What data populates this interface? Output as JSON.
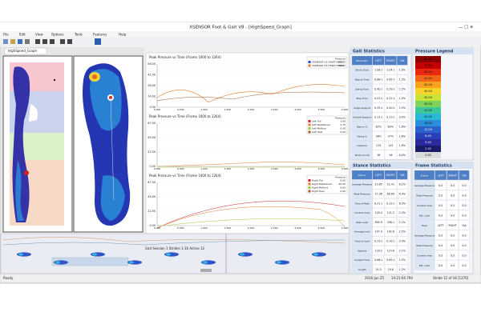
{
  "window": {
    "title": "XSENSOR Foot & Gait V8 - [HighSpeed_Graph]"
  },
  "menu": [
    "File",
    "Edit",
    "View",
    "Options",
    "Tools",
    "Features",
    "Help"
  ],
  "tab": "HighSpeed_Graph",
  "graphs": [
    {
      "title": "Peak Pressure vs Time (Frame 1000 to 1264)",
      "legend_header": "Pressure",
      "legend": [
        {
          "name": "XSENSOR X3 HSWP 58405",
          "value": "52.25",
          "color": "#1f4fbf"
        },
        {
          "name": "XSENSOR X3 HSWP 58406",
          "value": "38.05",
          "color": "#e07b2a"
        }
      ],
      "yticks": [
        "56.00",
        "42.00",
        "28.00",
        "14.00",
        "0.00"
      ]
    },
    {
      "title": "Peak Pressure vs Time (Frame 1000 to 1264)",
      "legend_header": "Pressure",
      "legend": [
        {
          "name": "Left Toe",
          "value": "3.00",
          "color": "#d0202a"
        },
        {
          "name": "Left Metatarsal",
          "value": "4.75",
          "color": "#e07b2a"
        },
        {
          "name": "Left Midfoot",
          "value": "0.00",
          "color": "#9bc93a"
        },
        {
          "name": "Left Heel",
          "value": "0.00",
          "color": "#a05a2c"
        }
      ],
      "yticks": [
        "67.50",
        "45.00",
        "22.50",
        "0.00"
      ]
    },
    {
      "title": "Peak Pressure vs Time (Frame 1000 to 1264)",
      "legend_header": "Pressure",
      "legend": [
        {
          "name": "Right Toe",
          "value": "0.00",
          "color": "#d0202a"
        },
        {
          "name": "Right Metatarsal",
          "value": "40.00",
          "color": "#e07b2a"
        },
        {
          "name": "Right Midfoot",
          "value": "0.00",
          "color": "#9bc93a"
        },
        {
          "name": "Right Heel",
          "value": "0.00",
          "color": "#a05a2c"
        }
      ],
      "yticks": [
        "67.50",
        "45.00",
        "22.50",
        "0.00"
      ]
    }
  ],
  "xticks": [
    "0.000",
    "0.500",
    "1.000",
    "1.500",
    "2.000",
    "2.500",
    "3.000",
    "3.500",
    "4.000"
  ],
  "gait_bar": "Gait Session 1  Strides 1-16  Active 12",
  "gait_statistics": {
    "title": "Gait Statistics",
    "headers": [
      "Parameter",
      "LEFT",
      "RIGHT",
      "%A"
    ],
    "rows": [
      [
        "Stride Time",
        "1.06 s",
        "1.04 s",
        "1.9%"
      ],
      [
        "Stance Time",
        "0.66 s",
        "0.65 s",
        "1.5%"
      ],
      [
        "Swing Time",
        "0.40 s",
        "0.39 s",
        "2.5%"
      ],
      [
        "Step Time",
        "0.53 s",
        "0.52 s",
        "1.9%"
      ],
      [
        "Single Support",
        "0.39 s",
        "0.40 s",
        "2.5%"
      ],
      [
        "Double Support",
        "0.13 s",
        "0.13 s",
        "0.0%"
      ],
      [
        "Stance %",
        "62%",
        "63%",
        "1.6%"
      ],
      [
        "Swing %",
        "38%",
        "37%",
        "2.6%"
      ],
      [
        "Cadence",
        "113",
        "115",
        "1.8%"
      ],
      [
        "Stride Count",
        "16",
        "16",
        "0.0%"
      ]
    ]
  },
  "stance_statistics": {
    "title": "Stance Statistics",
    "headers": [
      "Stance",
      "LEFT",
      "RIGHT",
      "%A"
    ],
    "rows": [
      [
        "Average Pressure",
        "23.85",
        "22.41",
        "6.2%"
      ],
      [
        "Peak Pressure",
        "72.96",
        "69.84",
        "4.4%"
      ],
      [
        "Time of Peak",
        "0.31 s",
        "0.33 s",
        "6.3%"
      ],
      [
        "Contact Area",
        "118.4",
        "121.2",
        "2.3%"
      ],
      [
        "Peak Load",
        "365.9",
        "358.1",
        "2.2%"
      ],
      [
        "Average Load",
        "197.4",
        "192.6",
        "2.5%"
      ],
      [
        "Time of Load",
        "0.29 s",
        "0.30 s",
        "3.4%"
      ],
      [
        "Impulse",
        "118.2",
        "115.8",
        "2.1%"
      ],
      [
        "Contact Time",
        "0.66 s",
        "0.65 s",
        "1.5%"
      ],
      [
        "Length",
        "24.5",
        "24.8",
        "1.2%"
      ]
    ]
  },
  "frame_statistics": {
    "title": "Frame Statistics",
    "headers": [
      "Frame",
      "LEFT",
      "RIGHT",
      "%A"
    ],
    "rows": [
      [
        "Average Pressure",
        "0.0",
        "0.0",
        "0.0"
      ],
      [
        "Peak Pressure",
        "0.0",
        "0.0",
        "0.0"
      ],
      [
        "Contact Area",
        "0.0",
        "0.0",
        "0.0"
      ],
      [
        "Est. Load",
        "0.0",
        "0.0",
        "0.0"
      ],
      [
        "Heel",
        "LEFT",
        "RIGHT",
        "%A"
      ],
      [
        "Average Pressure",
        "0.0",
        "0.0",
        "0.0"
      ],
      [
        "Peak Pressure",
        "0.0",
        "0.0",
        "0.0"
      ],
      [
        "Contact Area",
        "0.0",
        "0.0",
        "0.0"
      ],
      [
        "Est. Load",
        "0.0",
        "0.0",
        "0.0"
      ]
    ]
  },
  "pressure_legend": {
    "title": "Pressure Legend",
    "values": [
      "80.00",
      "70.00",
      "60.00",
      "52.00",
      "45.00",
      "40.00",
      "35.00",
      "30.00",
      "25.00",
      "20.00",
      "16.00",
      "12.00",
      "8.00",
      "5.00",
      "2.00",
      "0.00"
    ]
  },
  "status": [
    "Ready",
    "2016 Jun 25",
    "14:21:04.794",
    "Stride 12 of 18 [1270]"
  ]
}
